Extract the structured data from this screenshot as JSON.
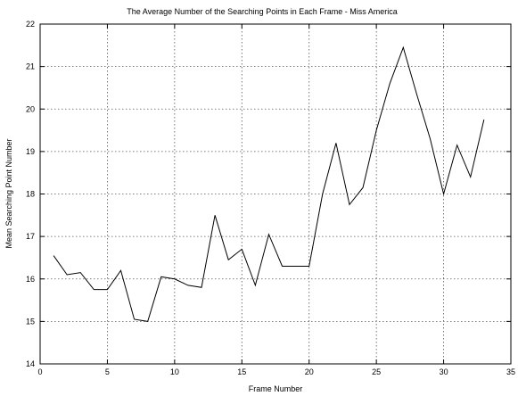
{
  "chart_data": {
    "type": "line",
    "title": "The Average Number of the Searching Points in Each Frame - Miss America",
    "xlabel": "Frame Number",
    "ylabel": "Mean Searching Point Number",
    "xlim": [
      0,
      35
    ],
    "ylim": [
      14,
      22
    ],
    "xticks": [
      "0",
      "5",
      "10",
      "15",
      "20",
      "25",
      "30",
      "35"
    ],
    "yticks": [
      "14",
      "15",
      "16",
      "17",
      "18",
      "19",
      "20",
      "21",
      "22"
    ],
    "grid": true,
    "series": [
      {
        "x": [
          1,
          2,
          3,
          4,
          5,
          6,
          7,
          8,
          9,
          10,
          11,
          12,
          13,
          14,
          15,
          16,
          17,
          18,
          19,
          20,
          21,
          22,
          23,
          24,
          25,
          26,
          27,
          28,
          29,
          30,
          31,
          32,
          33
        ],
        "values": [
          16.55,
          16.1,
          16.15,
          15.75,
          15.75,
          16.2,
          15.05,
          15.0,
          16.05,
          16.0,
          15.85,
          15.8,
          17.5,
          16.45,
          16.7,
          15.85,
          17.05,
          16.3,
          16.3,
          16.3,
          18.0,
          19.2,
          17.75,
          18.15,
          19.5,
          20.6,
          21.45,
          20.35,
          19.3,
          18.0,
          19.15,
          18.4,
          19.75
        ]
      }
    ],
    "line_color": "#000000"
  }
}
